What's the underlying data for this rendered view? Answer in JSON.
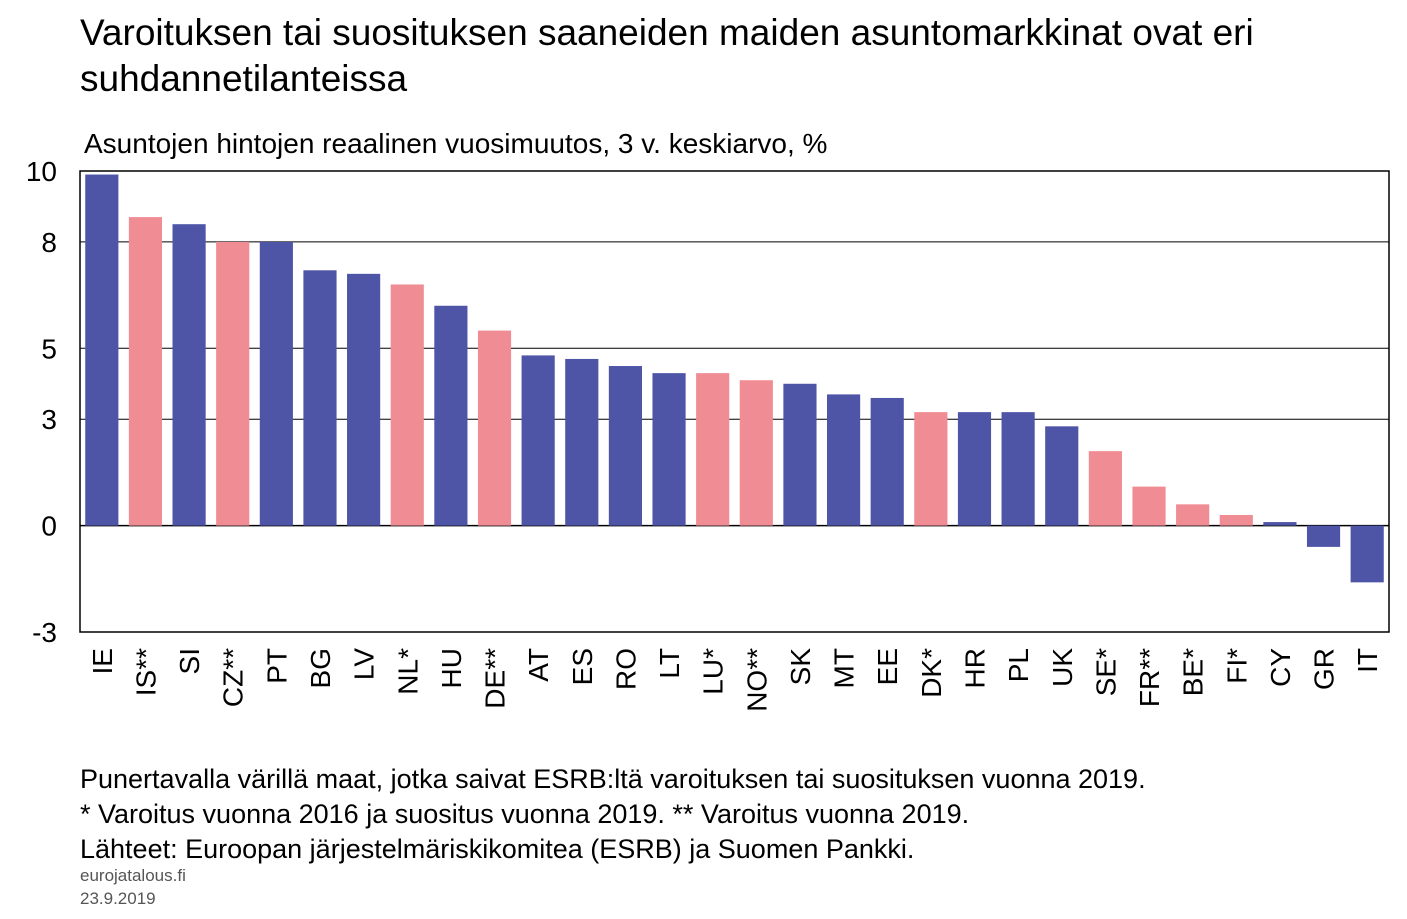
{
  "title": "Varoituksen tai suosituksen saaneiden maiden asuntomarkkinat ovat eri suhdannetilanteissa",
  "subtitle": "Asuntojen hintojen reaalinen vuosimuutos, 3 v. keskiarvo, %",
  "notes": [
    "Punertavalla värillä maat, jotka saivat ESRB:ltä varoituksen tai suosituksen vuonna 2019.",
    "* Varoitus vuonna 2016 ja suositus vuonna 2019. ** Varoitus vuonna 2019.",
    "Lähteet: Euroopan järjestelmäriskikomitea (ESRB) ja Suomen Pankki."
  ],
  "source_site": "eurojatalous.fi",
  "date": "23.9.2019",
  "colors": {
    "default": "#4f55a6",
    "warned": "#f08c93",
    "grid": "#000000"
  },
  "chart_data": {
    "type": "bar",
    "title": "Varoituksen tai suosituksen saaneiden maiden asuntomarkkinat ovat eri suhdannetilanteissa",
    "ylabel": "Asuntojen hintojen reaalinen vuosimuutos, 3 v. keskiarvo, %",
    "ylim": [
      -3,
      10
    ],
    "yticks": [
      10,
      8,
      5,
      3,
      0,
      -3
    ],
    "grid": true,
    "categories": [
      "IE",
      "IS**",
      "SI",
      "CZ**",
      "PT",
      "BG",
      "LV",
      "NL*",
      "HU",
      "DE**",
      "AT",
      "ES",
      "RO",
      "LT",
      "LU*",
      "NO**",
      "SK",
      "MT",
      "EE",
      "DK*",
      "HR",
      "PL",
      "UK",
      "SE*",
      "FR**",
      "BE*",
      "FI*",
      "CY",
      "GR",
      "IT"
    ],
    "values": [
      9.9,
      8.7,
      8.5,
      8.0,
      8.0,
      7.2,
      7.1,
      6.8,
      6.2,
      5.5,
      4.8,
      4.7,
      4.5,
      4.3,
      4.3,
      4.1,
      4.0,
      3.7,
      3.6,
      3.2,
      3.2,
      3.2,
      2.8,
      2.1,
      1.1,
      0.6,
      0.3,
      0.1,
      -0.6,
      -1.6
    ],
    "warned": [
      false,
      true,
      false,
      true,
      false,
      false,
      false,
      true,
      false,
      true,
      false,
      false,
      false,
      false,
      true,
      true,
      false,
      false,
      false,
      true,
      false,
      false,
      false,
      true,
      true,
      true,
      true,
      false,
      false,
      false
    ]
  }
}
